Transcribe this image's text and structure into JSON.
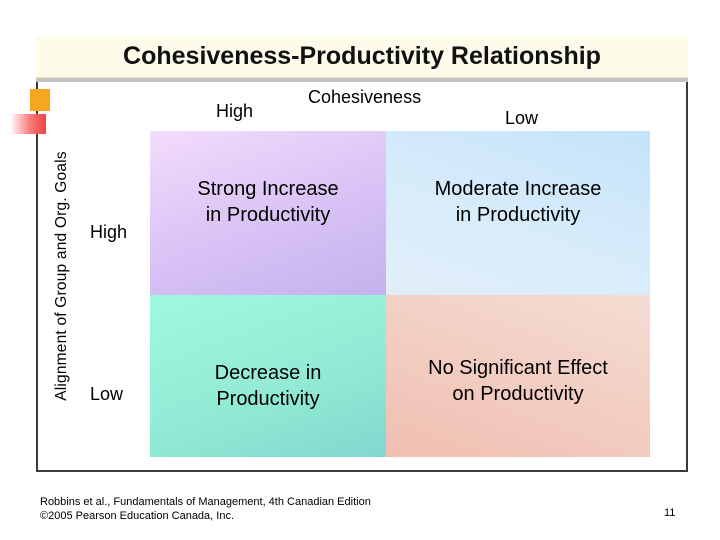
{
  "slide": {
    "title": "Cohesiveness-Productivity Relationship",
    "page_number": "11"
  },
  "matrix": {
    "column_axis_title": "Cohesiveness",
    "column_high": "High",
    "column_low": "Low",
    "row_axis_title": "Alignment of Group and Org. Goals",
    "row_high": "High",
    "row_low": "Low",
    "cells": {
      "high_high": "Strong Increase\nin Productivity",
      "high_low": "Moderate Increase\nin Productivity",
      "low_high": "Decrease in\nProductivity",
      "low_low": "No Significant Effect\non Productivity"
    }
  },
  "footer": {
    "citation": "Robbins et al., Fundamentals of Management, 4th Canadian Edition\n ©2005 Pearson Education Canada, Inc."
  },
  "colors": {
    "cell_high_high": "#dcc6f6",
    "cell_high_low": "#d3e9fa",
    "cell_low_high": "#95ecd6",
    "cell_low_low": "#f2ccc0",
    "accent_orange": "#f6a623",
    "accent_red": "#f04343"
  }
}
